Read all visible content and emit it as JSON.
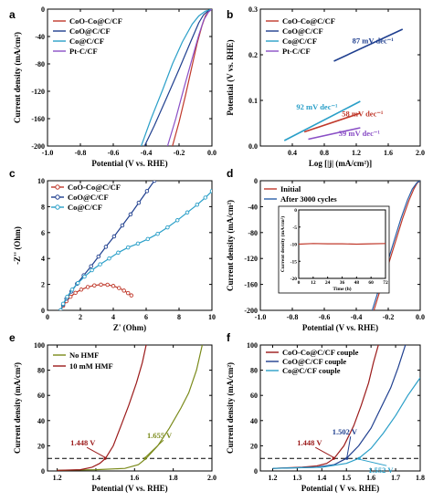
{
  "chart_data": [
    {
      "id": "a",
      "type": "line",
      "panel_letter": "a",
      "xlabel": "Potential (V vs. RHE)",
      "ylabel": "Current density (mA/cm²)",
      "xlim": [
        -1.0,
        0.0
      ],
      "ylim": [
        -200,
        0
      ],
      "xticks": [
        -1.0,
        -0.8,
        -0.6,
        -0.4,
        -0.2,
        0.0
      ],
      "xtick_labels": [
        "-1.0",
        "-0.8",
        "-0.6",
        "-0.4",
        "-0.2",
        "0.0"
      ],
      "yticks": [
        -200,
        -160,
        -120,
        -80,
        -40,
        0
      ],
      "ytick_labels": [
        "-200",
        "-160",
        "-120",
        "-80",
        "-40",
        "0"
      ],
      "legend": [
        "CoO-Co@C/CF",
        "CoO@C/CF",
        "Co@C/CF",
        "Pt-C/CF"
      ],
      "series": [
        {
          "name": "CoO-Co@C/CF",
          "color": "#c0392b",
          "x": [
            -0.24,
            -0.2,
            -0.16,
            -0.12,
            -0.09,
            -0.06,
            -0.04,
            -0.02,
            0.0
          ],
          "y": [
            -200,
            -165,
            -125,
            -82,
            -50,
            -24,
            -10,
            -3,
            0
          ]
        },
        {
          "name": "CoO@C/CF",
          "color": "#1f3f8f",
          "x": [
            -0.41,
            -0.35,
            -0.28,
            -0.2,
            -0.13,
            -0.08,
            -0.05,
            -0.02,
            0.0
          ],
          "y": [
            -200,
            -170,
            -132,
            -88,
            -48,
            -20,
            -8,
            -2,
            0
          ]
        },
        {
          "name": "Co@C/CF",
          "color": "#2a9fc8",
          "x": [
            -0.43,
            -0.37,
            -0.3,
            -0.24,
            -0.18,
            -0.12,
            -0.08,
            -0.04,
            0.0
          ],
          "y": [
            -200,
            -160,
            -118,
            -80,
            -48,
            -22,
            -10,
            -3,
            0
          ]
        },
        {
          "name": "Pt-C/CF",
          "color": "#8a4fc6",
          "x": [
            -0.27,
            -0.22,
            -0.17,
            -0.12,
            -0.08,
            -0.05,
            -0.02,
            0.0
          ],
          "y": [
            -200,
            -160,
            -115,
            -72,
            -38,
            -16,
            -4,
            0
          ]
        }
      ]
    },
    {
      "id": "b",
      "type": "line",
      "panel_letter": "b",
      "xlabel": "Log [|j| (mA/cm²)]",
      "ylabel": "Potential (V vs. RHE)",
      "xlim": [
        0.0,
        2.0
      ],
      "ylim": [
        0.0,
        0.3
      ],
      "xticks": [
        0.4,
        0.8,
        1.2,
        1.6,
        2.0
      ],
      "xtick_labels": [
        "0.4",
        "0.8",
        "1.2",
        "1.6",
        "2.0"
      ],
      "yticks": [
        0.0,
        0.1,
        0.2,
        0.3
      ],
      "ytick_labels": [
        "0.0",
        "0.1",
        "0.2",
        "0.3"
      ],
      "legend": [
        "CoO-Co@C/CF",
        "CoO@C/CF",
        "Co@C/CF",
        "Pt-C/CF"
      ],
      "series": [
        {
          "name": "CoO-Co@C/CF",
          "color": "#c0392b",
          "x": [
            0.55,
            1.25
          ],
          "y": [
            0.031,
            0.072
          ]
        },
        {
          "name": "CoO@C/CF",
          "color": "#1f3f8f",
          "x": [
            0.92,
            1.78
          ],
          "y": [
            0.186,
            0.256
          ]
        },
        {
          "name": "Co@C/CF",
          "color": "#2a9fc8",
          "x": [
            0.3,
            1.25
          ],
          "y": [
            0.012,
            0.098
          ]
        },
        {
          "name": "Pt-C/CF",
          "color": "#8a4fc6",
          "x": [
            0.6,
            1.25
          ],
          "y": [
            0.015,
            0.04
          ]
        }
      ],
      "annotations": [
        {
          "text": "87 mV dec⁻¹",
          "x": 1.15,
          "y": 0.225,
          "color": "#1f3f8f"
        },
        {
          "text": "92 mV dec⁻¹",
          "x": 0.45,
          "y": 0.08,
          "color": "#2a9fc8"
        },
        {
          "text": "58 mV dec⁻¹",
          "x": 1.02,
          "y": 0.065,
          "color": "#c0392b"
        },
        {
          "text": "39 mV dec⁻¹",
          "x": 0.98,
          "y": 0.022,
          "color": "#8a4fc6"
        }
      ]
    },
    {
      "id": "c",
      "type": "scatter",
      "panel_letter": "c",
      "xlabel": "Z' (Ohm)",
      "ylabel": "-Z'' (Ohm)",
      "xlim": [
        0,
        10
      ],
      "ylim": [
        0,
        10
      ],
      "xticks": [
        0,
        2,
        4,
        6,
        8,
        10
      ],
      "xtick_labels": [
        "0",
        "2",
        "4",
        "6",
        "8",
        "10"
      ],
      "yticks": [
        0,
        2,
        4,
        6,
        8,
        10
      ],
      "ytick_labels": [
        "0",
        "2",
        "4",
        "6",
        "8",
        "10"
      ],
      "legend": [
        "CoO-Co@C/CF",
        "CoO@C/CF",
        "Co@C/CF"
      ],
      "series": [
        {
          "name": "CoO-Co@C/CF",
          "color": "#c0392b",
          "x": [
            0.8,
            0.95,
            1.15,
            1.4,
            1.7,
            2.05,
            2.45,
            2.85,
            3.25,
            3.65,
            4.0,
            4.35,
            4.65,
            4.9,
            5.1
          ],
          "y": [
            0.0,
            0.35,
            0.7,
            1.05,
            1.35,
            1.6,
            1.8,
            1.92,
            1.98,
            1.97,
            1.88,
            1.72,
            1.52,
            1.33,
            1.15
          ]
        },
        {
          "name": "CoO@C/CF",
          "color": "#1f3f8f",
          "x": [
            0.8,
            0.95,
            1.15,
            1.45,
            1.8,
            2.2,
            2.65,
            3.1,
            3.55,
            4.05,
            4.55,
            5.05,
            5.55,
            6.05,
            6.5
          ],
          "y": [
            0.0,
            0.45,
            0.9,
            1.45,
            2.05,
            2.7,
            3.4,
            4.15,
            4.9,
            5.7,
            6.55,
            7.4,
            8.3,
            9.2,
            10.0
          ]
        },
        {
          "name": "Co@C/CF",
          "color": "#2a9fc8",
          "x": [
            0.8,
            0.95,
            1.2,
            1.5,
            1.85,
            2.25,
            2.7,
            3.2,
            3.75,
            4.3,
            4.9,
            5.5,
            6.1,
            6.7,
            7.3,
            7.9,
            8.5,
            9.1,
            9.6,
            10.0
          ],
          "y": [
            0.0,
            0.5,
            1.05,
            1.6,
            2.1,
            2.6,
            3.1,
            3.55,
            4.0,
            4.45,
            4.85,
            5.15,
            5.5,
            5.9,
            6.4,
            6.95,
            7.55,
            8.15,
            8.7,
            9.2
          ]
        }
      ]
    },
    {
      "id": "d",
      "type": "line",
      "panel_letter": "d",
      "xlabel": "Potential (V vs. RHE)",
      "ylabel": "Current density (mA/cm²)",
      "xlim": [
        -1.0,
        0.0
      ],
      "ylim": [
        -200,
        0
      ],
      "xticks": [
        -1.0,
        -0.8,
        -0.6,
        -0.4,
        -0.2,
        0.0
      ],
      "xtick_labels": [
        "-1.0",
        "-0.8",
        "-0.6",
        "-0.4",
        "-0.2",
        "0.0"
      ],
      "yticks": [
        -200,
        -160,
        -120,
        -80,
        -40,
        0
      ],
      "ytick_labels": [
        "-200",
        "-160",
        "-120",
        "-80",
        "-40",
        "0"
      ],
      "legend": [
        "Initial",
        "After 3000 cycles"
      ],
      "series": [
        {
          "name": "Initial",
          "color": "#c0392b",
          "x": [
            -0.29,
            -0.25,
            -0.2,
            -0.15,
            -0.11,
            -0.07,
            -0.04,
            -0.02,
            0.0
          ],
          "y": [
            -200,
            -168,
            -130,
            -90,
            -58,
            -30,
            -13,
            -4,
            0
          ]
        },
        {
          "name": "After 3000 cycles",
          "color": "#2a5fa8",
          "x": [
            -0.3,
            -0.26,
            -0.21,
            -0.16,
            -0.12,
            -0.08,
            -0.05,
            -0.02,
            0.0
          ],
          "y": [
            -200,
            -168,
            -130,
            -90,
            -58,
            -30,
            -13,
            -3,
            0
          ]
        }
      ],
      "inset": {
        "xlabel": "Time (h)",
        "ylabel": "Current density (mA/cm²)",
        "xlim": [
          0,
          72
        ],
        "ylim": [
          -20,
          0
        ],
        "xticks": [
          0,
          12,
          24,
          36,
          48,
          60,
          72
        ],
        "xtick_labels": [
          "0",
          "12",
          "24",
          "36",
          "48",
          "60",
          "72"
        ],
        "yticks": [
          -20,
          -15,
          -10,
          -5,
          0
        ],
        "ytick_labels": [
          "-20",
          "-15",
          "-10",
          "-5",
          "0"
        ],
        "series": [
          {
            "color": "#c0392b",
            "x": [
              0,
              12,
              24,
              36,
              48,
              60,
              72
            ],
            "y": [
              -10,
              -9.8,
              -9.9,
              -9.9,
              -10,
              -9.9,
              -9.8
            ]
          }
        ]
      }
    },
    {
      "id": "e",
      "type": "line",
      "panel_letter": "e",
      "xlabel": "Potential (V vs. RHE)",
      "ylabel": "Current density (mA/cm²)",
      "xlim": [
        1.15,
        2.0
      ],
      "ylim": [
        0,
        100
      ],
      "xticks": [
        1.2,
        1.4,
        1.6,
        1.8,
        2.0
      ],
      "xtick_labels": [
        "1.2",
        "1.4",
        "1.6",
        "1.8",
        "2.0"
      ],
      "yticks": [
        0,
        20,
        40,
        60,
        80,
        100
      ],
      "ytick_labels": [
        "0",
        "20",
        "40",
        "60",
        "80",
        "100"
      ],
      "legend": [
        "No HMF",
        "10 mM HMF"
      ],
      "series": [
        {
          "name": "No HMF",
          "color": "#7a8a1a",
          "x": [
            1.2,
            1.4,
            1.55,
            1.62,
            1.66,
            1.72,
            1.78,
            1.84,
            1.88,
            1.92,
            1.95
          ],
          "y": [
            0.5,
            1,
            2,
            5,
            10,
            20,
            34,
            50,
            62,
            80,
            100
          ]
        },
        {
          "name": "10 mM HMF",
          "color": "#9b1a1a",
          "x": [
            1.2,
            1.32,
            1.38,
            1.42,
            1.45,
            1.49,
            1.53,
            1.57,
            1.61,
            1.64,
            1.66
          ],
          "y": [
            0.5,
            1,
            3,
            6,
            10,
            20,
            36,
            52,
            70,
            86,
            100
          ]
        }
      ],
      "reference_line_y": 10,
      "annotations": [
        {
          "text": "1.448 V",
          "x": 1.448,
          "y": 10,
          "color": "#9b1a1a"
        },
        {
          "text": "1.655 V",
          "x": 1.655,
          "y": 10,
          "color": "#7a8a1a"
        }
      ]
    },
    {
      "id": "f",
      "type": "line",
      "panel_letter": "f",
      "xlabel": "Potential ( V vs. RHE)",
      "ylabel": "Current density (mA/cm²)",
      "xlim": [
        1.15,
        1.8
      ],
      "ylim": [
        0,
        100
      ],
      "xticks": [
        1.2,
        1.3,
        1.4,
        1.5,
        1.6,
        1.7,
        1.8
      ],
      "xtick_labels": [
        "1.2",
        "1.3",
        "1.4",
        "1.5",
        "1.6",
        "1.7",
        "1.8"
      ],
      "yticks": [
        0,
        20,
        40,
        60,
        80,
        100
      ],
      "ytick_labels": [
        "0",
        "20",
        "40",
        "60",
        "80",
        "100"
      ],
      "legend": [
        "CoO-Co@C/CF couple",
        "CoO@C/CF couple",
        "Co@C/CF couple"
      ],
      "series": [
        {
          "name": "CoO-Co@C/CF couple",
          "color": "#9b1a1a",
          "x": [
            1.2,
            1.32,
            1.38,
            1.42,
            1.45,
            1.49,
            1.53,
            1.56,
            1.59,
            1.61,
            1.63
          ],
          "y": [
            2,
            3,
            4,
            6,
            10,
            20,
            36,
            52,
            70,
            86,
            100
          ]
        },
        {
          "name": "CoO@C/CF couple",
          "color": "#1f3f8f",
          "x": [
            1.2,
            1.38,
            1.45,
            1.5,
            1.55,
            1.6,
            1.64,
            1.68,
            1.71,
            1.74
          ],
          "y": [
            2,
            3,
            5,
            10,
            20,
            34,
            50,
            66,
            82,
            100
          ]
        },
        {
          "name": "Co@C/CF couple",
          "color": "#2a9fc8",
          "x": [
            1.2,
            1.4,
            1.5,
            1.55,
            1.6,
            1.65,
            1.7,
            1.75,
            1.8
          ],
          "y": [
            2,
            3,
            6,
            10,
            18,
            30,
            44,
            60,
            74
          ]
        }
      ],
      "reference_line_y": 10,
      "annotations": [
        {
          "text": "1.448 V",
          "x": 1.448,
          "y": 10,
          "color": "#9b1a1a"
        },
        {
          "text": "1.502 V",
          "x": 1.502,
          "y": 10,
          "color": "#1f3f8f"
        },
        {
          "text": "1.552 V",
          "x": 1.552,
          "y": 10,
          "color": "#2a9fc8"
        }
      ]
    }
  ]
}
